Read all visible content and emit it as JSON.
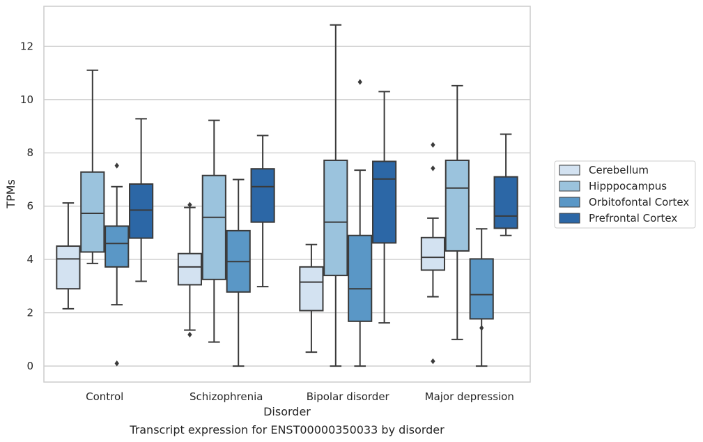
{
  "chart_data": {
    "type": "box",
    "caption": "Transcript expression for ENST00000350033 by disorder",
    "xlabel": "Disorder",
    "ylabel": "TPMs",
    "ylim": [
      -0.6,
      13.5
    ],
    "yticks": [
      0,
      2,
      4,
      6,
      8,
      10,
      12
    ],
    "grid": "horizontal",
    "legend_placement": "center-right",
    "categories": [
      "Control",
      "Schizophrenia",
      "Bipolar disorder",
      "Major depression"
    ],
    "series": [
      {
        "name": "Cerebellum",
        "color": "#d3e2f1",
        "boxes": [
          {
            "whislo": 2.15,
            "q1": 2.9,
            "med": 4.02,
            "q3": 4.5,
            "whishi": 6.12,
            "fliers": []
          },
          {
            "whislo": 1.35,
            "q1": 3.05,
            "med": 3.72,
            "q3": 4.22,
            "whishi": 5.95,
            "fliers": [
              1.18,
              6.05
            ]
          },
          {
            "whislo": 0.52,
            "q1": 2.08,
            "med": 3.15,
            "q3": 3.72,
            "whishi": 4.56,
            "fliers": []
          },
          {
            "whislo": 2.6,
            "q1": 3.6,
            "med": 4.08,
            "q3": 4.82,
            "whishi": 5.55,
            "fliers": [
              0.18,
              7.42,
              8.3
            ]
          }
        ]
      },
      {
        "name": "Hipppocampus",
        "color": "#9bc3dd",
        "boxes": [
          {
            "whislo": 3.85,
            "q1": 4.28,
            "med": 5.73,
            "q3": 7.28,
            "whishi": 11.1,
            "fliers": []
          },
          {
            "whislo": 0.9,
            "q1": 3.25,
            "med": 5.58,
            "q3": 7.15,
            "whishi": 9.22,
            "fliers": []
          },
          {
            "whislo": 0.0,
            "q1": 3.4,
            "med": 5.4,
            "q3": 7.72,
            "whishi": 12.8,
            "fliers": []
          },
          {
            "whislo": 1.0,
            "q1": 4.32,
            "med": 6.68,
            "q3": 7.72,
            "whishi": 10.52,
            "fliers": []
          }
        ]
      },
      {
        "name": "Orbitofontal Cortex",
        "color": "#5a97c6",
        "boxes": [
          {
            "whislo": 2.3,
            "q1": 3.72,
            "med": 4.6,
            "q3": 5.25,
            "whishi": 6.73,
            "fliers": [
              0.1,
              7.52
            ]
          },
          {
            "whislo": 0.0,
            "q1": 2.78,
            "med": 3.92,
            "q3": 5.08,
            "whishi": 7.0,
            "fliers": []
          },
          {
            "whislo": 0.0,
            "q1": 1.68,
            "med": 2.9,
            "q3": 4.9,
            "whishi": 7.35,
            "fliers": [
              10.66
            ]
          },
          {
            "whislo": 0.0,
            "q1": 1.77,
            "med": 2.68,
            "q3": 4.02,
            "whishi": 5.15,
            "fliers": [
              1.43
            ]
          }
        ]
      },
      {
        "name": "Prefrontal Cortex",
        "color": "#2c67a6",
        "boxes": [
          {
            "whislo": 3.18,
            "q1": 4.8,
            "med": 5.85,
            "q3": 6.83,
            "whishi": 9.28,
            "fliers": []
          },
          {
            "whislo": 2.98,
            "q1": 5.4,
            "med": 6.73,
            "q3": 7.4,
            "whishi": 8.65,
            "fliers": []
          },
          {
            "whislo": 1.62,
            "q1": 4.62,
            "med": 7.02,
            "q3": 7.68,
            "whishi": 10.3,
            "fliers": []
          },
          {
            "whislo": 4.9,
            "q1": 5.17,
            "med": 5.63,
            "q3": 7.1,
            "whishi": 8.7,
            "fliers": []
          }
        ]
      }
    ]
  }
}
